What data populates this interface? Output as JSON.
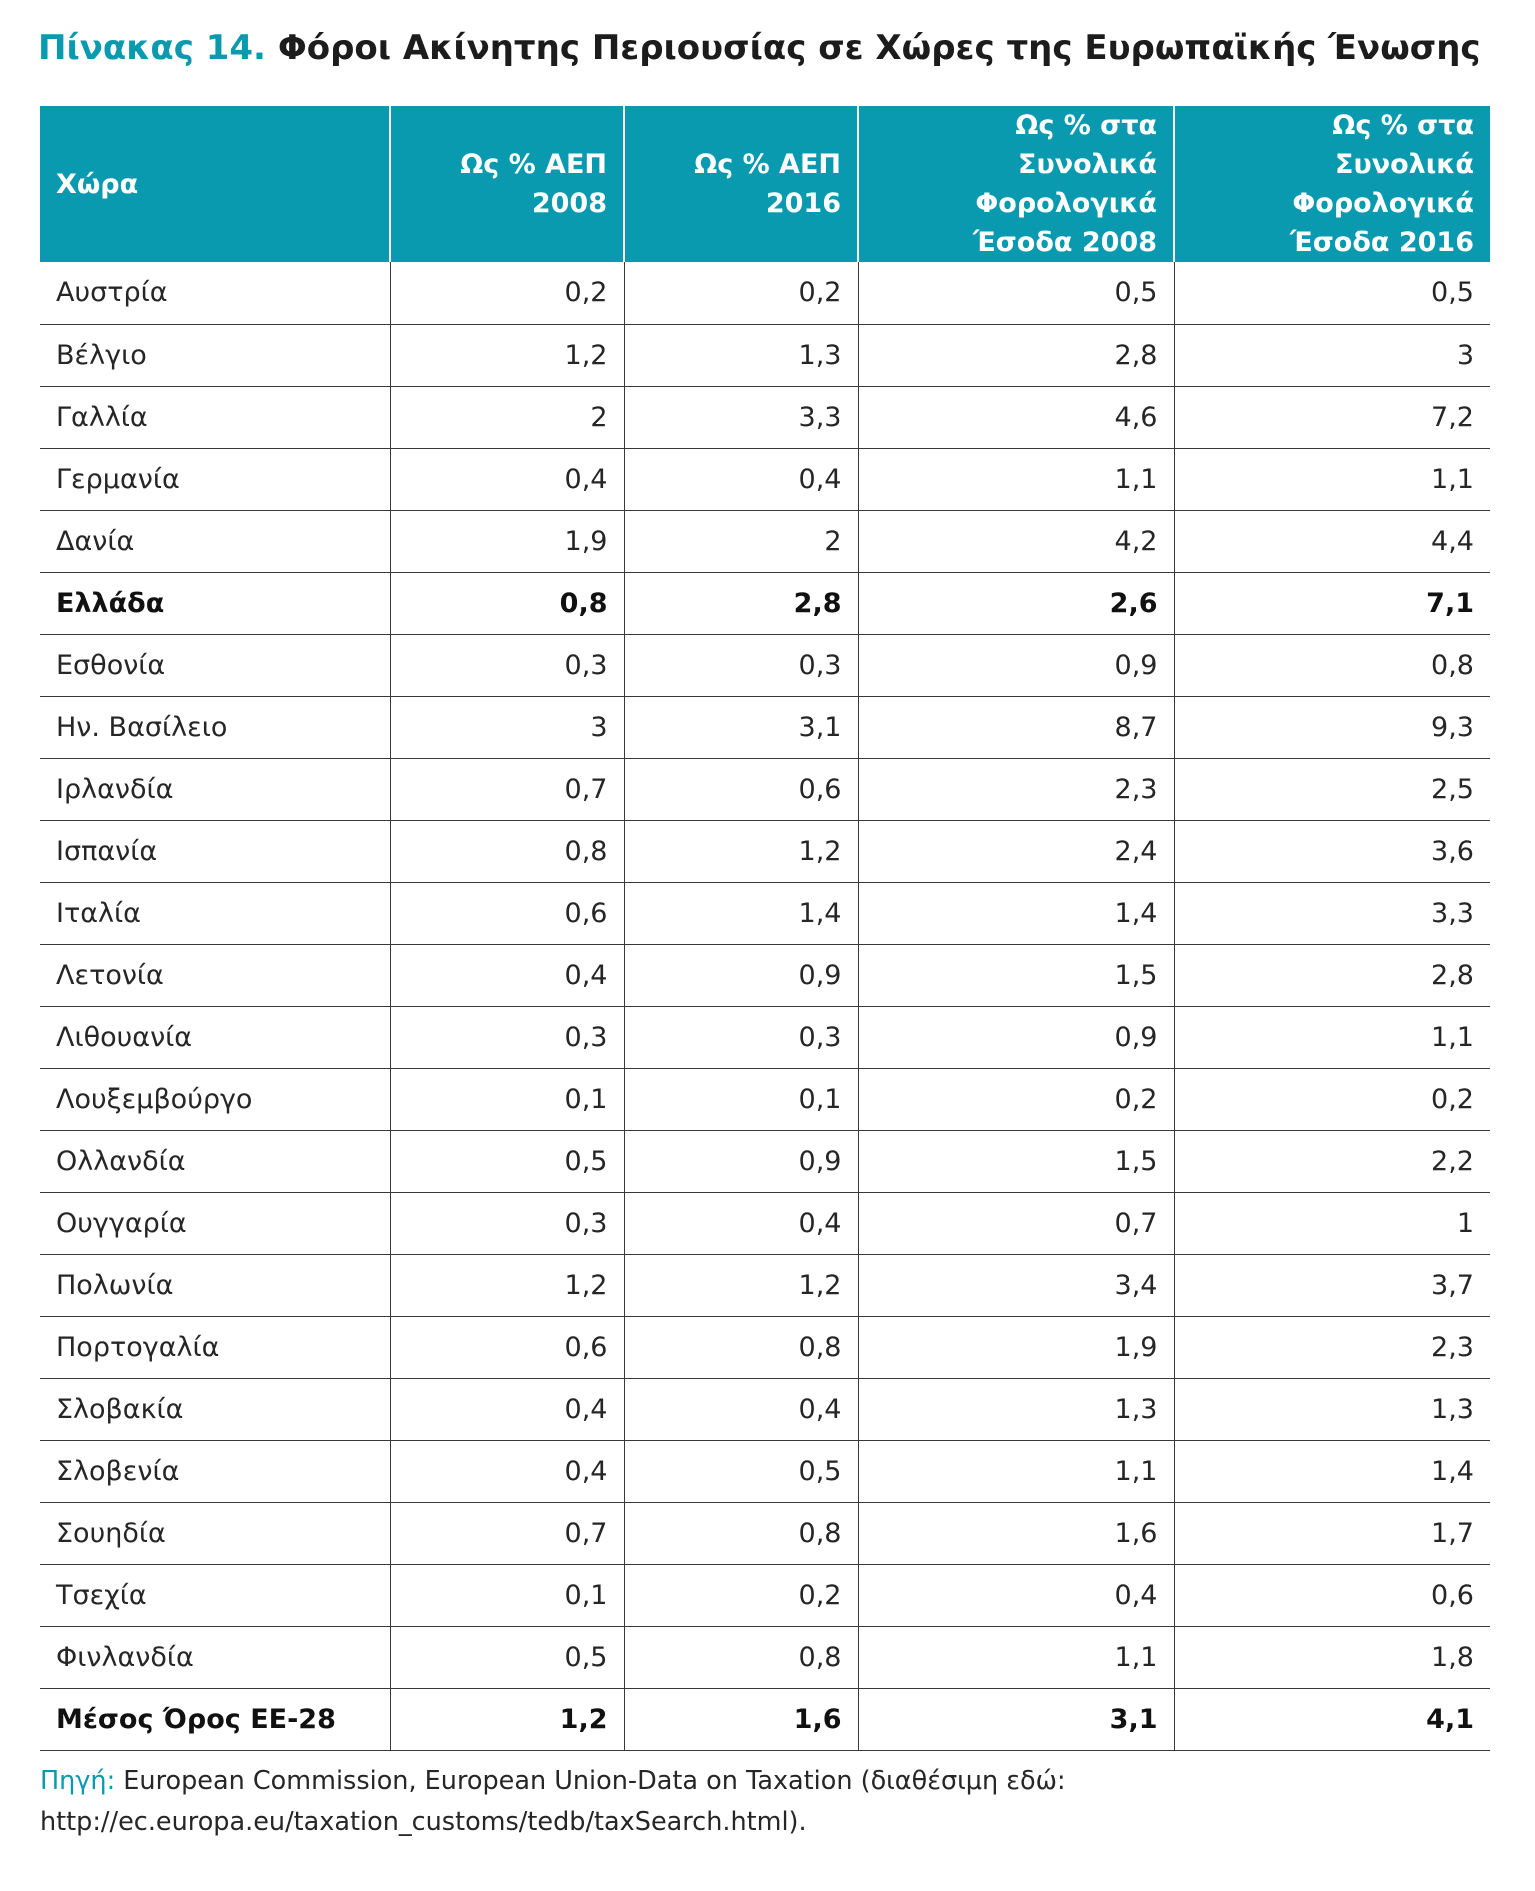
{
  "title": {
    "label": "Πίνακας 14.",
    "text": "Φόροι Ακίνητης Περιουσίας σε Χώρες της Ευρωπαϊκής Ένωσης"
  },
  "table": {
    "headers": [
      "Χώρα",
      "Ως % ΑΕΠ\n2008",
      "Ως % ΑΕΠ\n2016",
      "Ως % στα Συνολικά\nΦορολογικά\nΈσοδα 2008",
      "Ως % στα Συνολικά\nΦορολογικά\nΈσοδα 2016"
    ],
    "rows": [
      {
        "cells": [
          "Αυστρία",
          "0,2",
          "0,2",
          "0,5",
          "0,5"
        ],
        "bold": false
      },
      {
        "cells": [
          "Βέλγιο",
          "1,2",
          "1,3",
          "2,8",
          "3"
        ],
        "bold": false
      },
      {
        "cells": [
          "Γαλλία",
          "2",
          "3,3",
          "4,6",
          "7,2"
        ],
        "bold": false
      },
      {
        "cells": [
          "Γερμανία",
          "0,4",
          "0,4",
          "1,1",
          "1,1"
        ],
        "bold": false
      },
      {
        "cells": [
          "Δανία",
          "1,9",
          "2",
          "4,2",
          "4,4"
        ],
        "bold": false
      },
      {
        "cells": [
          "Ελλάδα",
          "0,8",
          "2,8",
          "2,6",
          "7,1"
        ],
        "bold": true
      },
      {
        "cells": [
          "Εσθονία",
          "0,3",
          "0,3",
          "0,9",
          "0,8"
        ],
        "bold": false
      },
      {
        "cells": [
          "Ην. Βασίλειο",
          "3",
          "3,1",
          "8,7",
          "9,3"
        ],
        "bold": false
      },
      {
        "cells": [
          "Ιρλανδία",
          "0,7",
          "0,6",
          "2,3",
          "2,5"
        ],
        "bold": false
      },
      {
        "cells": [
          "Ισπανία",
          "0,8",
          "1,2",
          "2,4",
          "3,6"
        ],
        "bold": false
      },
      {
        "cells": [
          "Ιταλία",
          "0,6",
          "1,4",
          "1,4",
          "3,3"
        ],
        "bold": false
      },
      {
        "cells": [
          "Λετονία",
          "0,4",
          "0,9",
          "1,5",
          "2,8"
        ],
        "bold": false
      },
      {
        "cells": [
          "Λιθουανία",
          "0,3",
          "0,3",
          "0,9",
          "1,1"
        ],
        "bold": false
      },
      {
        "cells": [
          "Λουξεμβούργο",
          "0,1",
          "0,1",
          "0,2",
          "0,2"
        ],
        "bold": false
      },
      {
        "cells": [
          "Ολλανδία",
          "0,5",
          "0,9",
          "1,5",
          "2,2"
        ],
        "bold": false
      },
      {
        "cells": [
          "Ουγγαρία",
          "0,3",
          "0,4",
          "0,7",
          "1"
        ],
        "bold": false
      },
      {
        "cells": [
          "Πολωνία",
          "1,2",
          "1,2",
          "3,4",
          "3,7"
        ],
        "bold": false
      },
      {
        "cells": [
          "Πορτογαλία",
          "0,6",
          "0,8",
          "1,9",
          "2,3"
        ],
        "bold": false
      },
      {
        "cells": [
          "Σλοβακία",
          "0,4",
          "0,4",
          "1,3",
          "1,3"
        ],
        "bold": false
      },
      {
        "cells": [
          "Σλοβενία",
          "0,4",
          "0,5",
          "1,1",
          "1,4"
        ],
        "bold": false
      },
      {
        "cells": [
          "Σουηδία",
          "0,7",
          "0,8",
          "1,6",
          "1,7"
        ],
        "bold": false
      },
      {
        "cells": [
          "Τσεχία",
          "0,1",
          "0,2",
          "0,4",
          "0,6"
        ],
        "bold": false
      },
      {
        "cells": [
          "Φινλανδία",
          "0,5",
          "0,8",
          "1,1",
          "1,8"
        ],
        "bold": false
      },
      {
        "cells": [
          "Μέσος Όρος ΕΕ-28",
          "1,2",
          "1,6",
          "3,1",
          "4,1"
        ],
        "bold": true
      }
    ]
  },
  "source": {
    "label": "Πηγή:",
    "text": "European Commission, European Union-Data on Taxation (διαθέσιμη εδώ: http://ec.europa.eu/taxation_customs/tedb/taxSearch.html)."
  },
  "colors": {
    "accent": "#0a9ab0",
    "header_text": "#ffffff",
    "rule": "#3a3a3a"
  }
}
